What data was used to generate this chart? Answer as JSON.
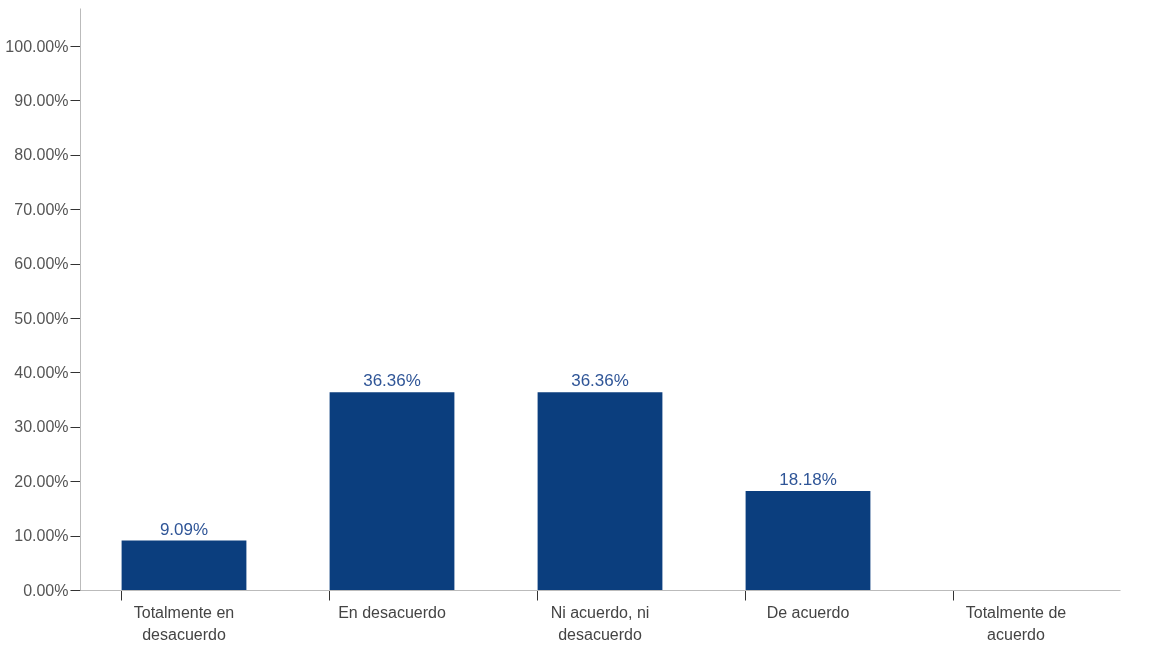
{
  "chart_data": {
    "type": "bar",
    "categories": [
      "Totalmente en desacuerdo",
      "En desacuerdo",
      "Ni acuerdo, ni desacuerdo",
      "De acuerdo",
      "Totalmente de acuerdo"
    ],
    "values": [
      9.09,
      36.36,
      36.36,
      18.18,
      0
    ],
    "color": "#0b3e7e",
    "value_labels": [
      "9.09%",
      "36.36%",
      "36.36%",
      "18.18%",
      null
    ],
    "ylim": [
      0,
      107
    ],
    "yticks": [
      {
        "value": 0,
        "label": "0.00%"
      },
      {
        "value": 10,
        "label": "10.00%"
      },
      {
        "value": 20,
        "label": "20.00%"
      },
      {
        "value": 30,
        "label": "30.00%"
      },
      {
        "value": 40,
        "label": "40.00%"
      },
      {
        "value": 50,
        "label": "50.00%"
      },
      {
        "value": 60,
        "label": "60.00%"
      },
      {
        "value": 70,
        "label": "70.00%"
      },
      {
        "value": 80,
        "label": "80.00%"
      },
      {
        "value": 90,
        "label": "90.00%"
      },
      {
        "value": 100,
        "label": "100.00%"
      }
    ],
    "grid": false
  }
}
